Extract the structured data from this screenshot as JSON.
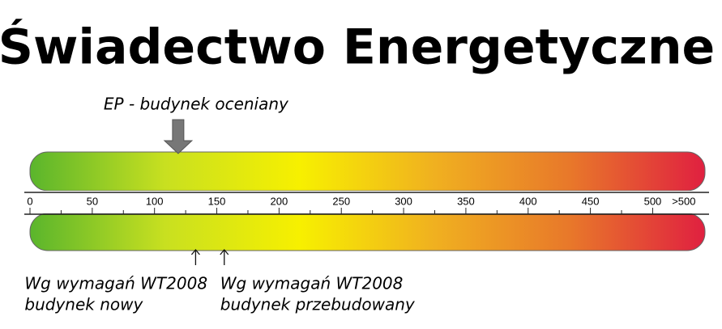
{
  "chart_data": {
    "type": "scale",
    "title": "Świadectwo Energetyczne",
    "xlim": [
      0,
      542
    ],
    "xticks": [
      0,
      50,
      100,
      150,
      200,
      250,
      300,
      350,
      400,
      450,
      500,
      {
        "value": 525,
        "label": ">500"
      }
    ],
    "minor_xticks": [
      25,
      75,
      125,
      175,
      225,
      275,
      325,
      375,
      425,
      475
    ],
    "colors": [
      "#5ab52c",
      "#c8e020",
      "#f7f000",
      "#f0b020",
      "#e8782a",
      "#e02040"
    ],
    "markers": [
      {
        "lines": [
          "EP - budynek oceniany"
        ],
        "value": 119,
        "arrow": "down"
      },
      {
        "lines": [
          "Wg wymagań WT2008",
          "budynek nowy"
        ],
        "value": 133,
        "arrow": "up"
      },
      {
        "lines": [
          "Wg wymagań WT2008",
          "budynek przebudowany"
        ],
        "value": 156,
        "arrow": "up"
      }
    ]
  }
}
